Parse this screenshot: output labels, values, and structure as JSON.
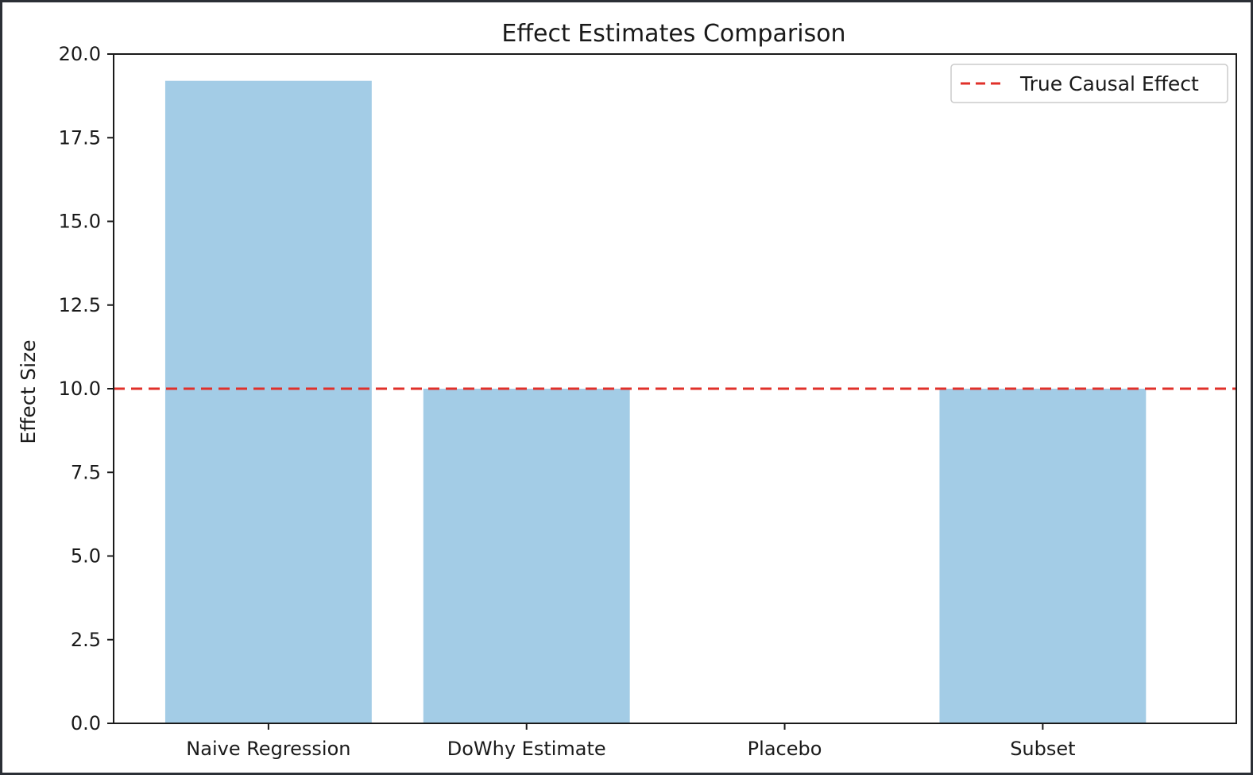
{
  "chart_data": {
    "type": "bar",
    "title": "Effect Estimates Comparison",
    "xlabel": "",
    "ylabel": "Effect Size",
    "categories": [
      "Naive Regression",
      "DoWhy Estimate",
      "Placebo",
      "Subset"
    ],
    "values": [
      19.2,
      10.0,
      0.0,
      10.0
    ],
    "ylim": [
      0,
      20
    ],
    "yticks": [
      "0.0",
      "2.5",
      "5.0",
      "7.5",
      "10.0",
      "12.5",
      "15.0",
      "17.5",
      "20.0"
    ],
    "bar_color": "#a3cce6",
    "reference_line": {
      "label": "True Causal Effect",
      "value": 10.0,
      "color": "#e0302a",
      "style": "dashed"
    },
    "legend_position": "top-right",
    "grid": false
  }
}
